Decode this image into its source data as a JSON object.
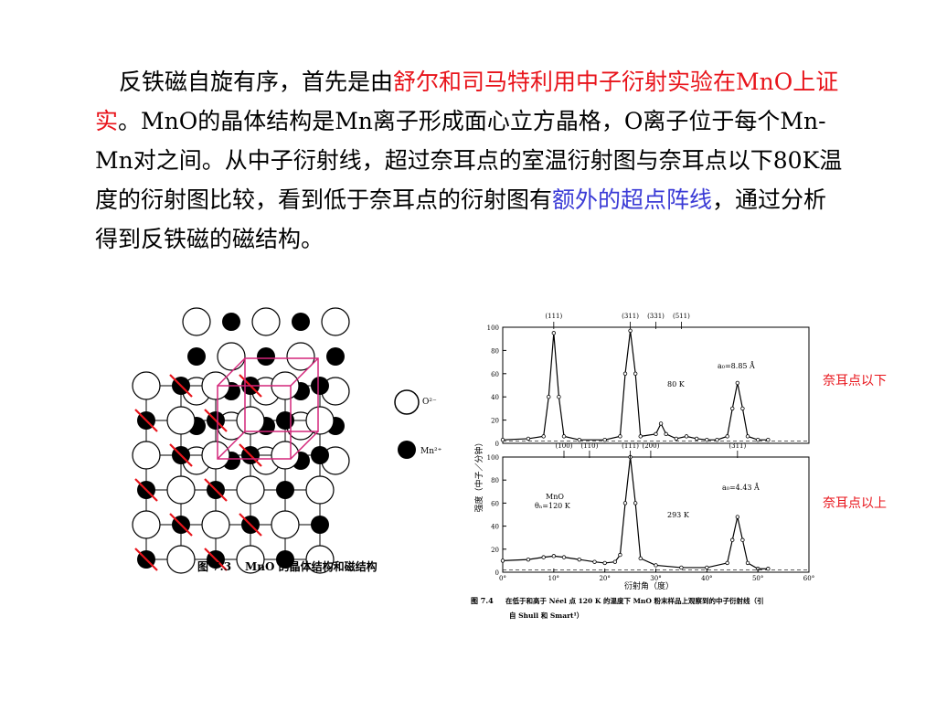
{
  "paragraph": {
    "p1": "反铁磁自旋有序，首先是由",
    "p2_red": "舒尔和司马特利用中子衍射实验在MnO上证实",
    "p3": "。MnO的晶体结构是Mn离子形成面心立方晶格，O离子位于每个Mn-Mn对之间。从中子衍射线，超过奈耳点的室温衍射图与奈耳点以下80K温度的衍射图比较，看到低于奈耳点的衍射图有",
    "p4_blue": "额外的超点阵线",
    "p5": "，通过分析得到反铁磁的磁结构。"
  },
  "figure_7_3": {
    "legend_o": "O²⁻",
    "legend_mn": "Mn²⁺",
    "caption_num": "图 7.3",
    "caption_text": "MnO 的晶体结构和磁结构"
  },
  "figure_7_4": {
    "ylabel": "强度（中子／分钟）",
    "xlabel": "衍射角（度）",
    "y_ticks": [
      "100",
      "80",
      "60",
      "40",
      "20",
      "0"
    ],
    "x_ticks": [
      "0°",
      "10°",
      "20°",
      "30°",
      "40°",
      "50°",
      "60°"
    ],
    "top_peaks_labels": [
      "(111)",
      "(311)",
      "(331)",
      "(511)"
    ],
    "bottom_peaks_labels": [
      "(100)",
      "(110)",
      "(111)",
      "(200)",
      "(311)"
    ],
    "top_temp": "80 K",
    "top_lattice": "a₀=8.85 Å",
    "bottom_sample": "MnO",
    "bottom_theta": "θₙ=120 K",
    "bottom_temp": "293 K",
    "bottom_lattice": "a₀=4.43 Å",
    "caption_num": "图 7.4",
    "caption_line1": "在低于和高于 Néel 点 120 K 的温度下 MnO 粉末样品上观察到的中子衍射线（引",
    "caption_line2": "自 Shull 和 Smart¹）"
  },
  "side_labels": {
    "below": "奈耳点以下",
    "above": "奈耳点以上"
  },
  "chart_data": [
    {
      "type": "line",
      "title": "",
      "xlabel": "衍射角（度）",
      "ylabel": "强度（中子／分钟）",
      "xlim": [
        0,
        60
      ],
      "ylim": [
        0,
        100
      ],
      "series": [
        {
          "name": "80 K",
          "x": [
            0,
            5,
            8,
            9,
            10,
            11,
            12,
            15,
            20,
            23,
            24,
            25,
            26,
            27,
            30,
            31,
            32,
            34,
            36,
            38,
            40,
            42,
            44,
            45,
            46,
            47,
            48,
            50,
            52
          ],
          "y": [
            3,
            4,
            6,
            40,
            95,
            40,
            6,
            3,
            3,
            6,
            60,
            97,
            60,
            6,
            8,
            17,
            8,
            4,
            6,
            4,
            3,
            3,
            6,
            30,
            52,
            30,
            6,
            3,
            3
          ]
        },
        {
          "name": "293 K",
          "x": [
            0,
            5,
            8,
            10,
            12,
            15,
            18,
            20,
            22,
            23,
            24,
            25,
            26,
            27,
            30,
            35,
            40,
            44,
            45,
            46,
            47,
            48,
            50,
            52
          ],
          "y": [
            10,
            11,
            13,
            14,
            13,
            11,
            9,
            8,
            9,
            15,
            60,
            100,
            60,
            12,
            6,
            4,
            4,
            8,
            28,
            48,
            28,
            8,
            3,
            3
          ]
        }
      ]
    }
  ]
}
